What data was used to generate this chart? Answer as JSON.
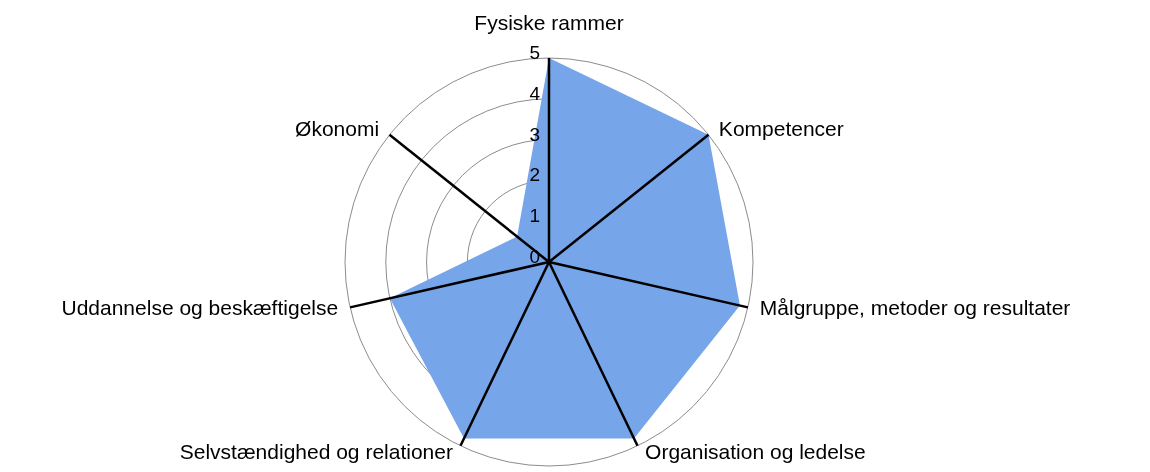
{
  "chart_data": {
    "type": "radar",
    "categories": [
      "Fysiske rammer",
      "Kompetencer",
      "Målgruppe, metoder og resultater",
      "Organisation og ledelse",
      "Selvstændighed og relationer",
      "Uddannelse og beskæftigelse",
      "Økonomi"
    ],
    "series": [
      {
        "color": "#77a5e9",
        "values": [
          5,
          5,
          4.8,
          4.8,
          4.8,
          4,
          1
        ]
      }
    ],
    "ylim": [
      0,
      5
    ],
    "yticks": [
      0,
      1,
      2,
      3,
      4,
      5
    ],
    "grid": true
  }
}
